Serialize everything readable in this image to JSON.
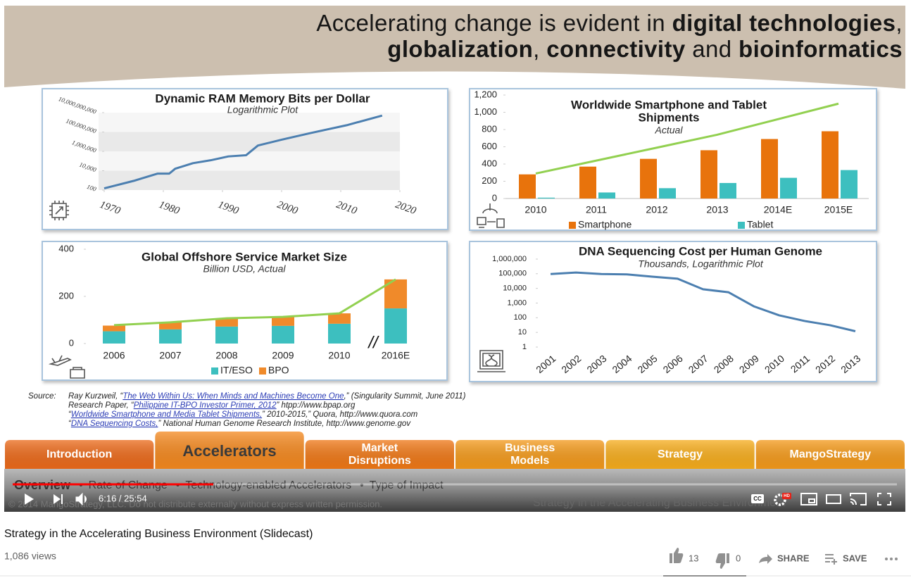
{
  "slide": {
    "title_lines": [
      [
        {
          "text": "Accelerating change is evident in ",
          "bold": false
        },
        {
          "text": "digital technologies",
          "bold": true
        },
        {
          "text": ",",
          "bold": false
        }
      ],
      [
        {
          "text": "globalization",
          "bold": true
        },
        {
          "text": ", ",
          "bold": false
        },
        {
          "text": "connectivity",
          "bold": true
        },
        {
          "text": " and ",
          "bold": false
        },
        {
          "text": "bioinformatics",
          "bold": true
        }
      ]
    ],
    "source": {
      "label": "Source:",
      "lines": [
        {
          "before": "Ray Kurzweil, “",
          "link": "The Web Within Us: When Minds and Machines Become One",
          "after": ",” (Singularity Summit, June 2011)"
        },
        {
          "before": "Research Paper, “",
          "link": "Philippine IT-BPO Investor Primer, 2012",
          "after": "” htpp://www.bpap.org"
        },
        {
          "before": "“",
          "link": "Worldwide Smartphone and Media Tablet Shipments,",
          "after": "” 2010-2015,” Quora, http://www.quora.com"
        },
        {
          "before": "“",
          "link": "DNA Sequencing Costs,",
          "after": "” National Human Genome Research Institute, http://www.genome.gov"
        }
      ]
    },
    "tabs": [
      [
        "Introduction"
      ],
      [
        "Accelerators"
      ],
      [
        "Market",
        "Disruptions"
      ],
      [
        "Business",
        "Models"
      ],
      [
        "Strategy"
      ],
      [
        "MangoStrategy"
      ]
    ],
    "active_tab": 1,
    "subnav": [
      "Overview",
      "Rate of Change",
      "Technology-enabled Accelerators",
      "Type of Impact"
    ],
    "subnav_separator": "•",
    "copyright": "© 2014 MangoStrategy, LLC. Do not distribute externally without express written permission.",
    "footer_title": "Strategy in the Accelerating Business Environment"
  },
  "chart_data": [
    {
      "type": "line",
      "title": "Dynamic RAM Memory Bits per Dollar",
      "subtitle": "Logarithmic Plot",
      "x": [
        1970,
        1975,
        1979,
        1981,
        1982,
        1985,
        1988,
        1991,
        1994,
        1996,
        2000,
        2005,
        2011,
        2017
      ],
      "values": [
        150,
        900,
        5000,
        5000,
        16000,
        60000,
        120000,
        300000,
        400000,
        4000000,
        16000000,
        80000000,
        500000000,
        5000000000
      ],
      "color": "#4c7fb0",
      "log_y": true,
      "grid": "bands",
      "xlim": [
        1970,
        2020
      ],
      "xticks": [
        1970,
        1980,
        1990,
        2000,
        2010,
        2020
      ],
      "ylim": [
        100,
        10000000000
      ],
      "yticks": [
        100,
        {
          "value": 10000,
          "label": "10,000"
        },
        {
          "value": 1000000,
          "label": "1,000,000"
        },
        {
          "value": 100000000,
          "label": "100,000,000"
        },
        {
          "value": 10000000000,
          "label": "10,000,000,000"
        }
      ]
    },
    {
      "type": "bar",
      "title": [
        "Worldwide Smartphone and Tablet",
        "Shipments"
      ],
      "subtitle": "Actual",
      "categories": [
        "2010",
        "2011",
        "2012",
        "2013",
        "2014E",
        "2015E"
      ],
      "series": [
        {
          "name": "Smartphone",
          "color": "#e8730c",
          "values": [
            280,
            370,
            460,
            560,
            690,
            780
          ]
        },
        {
          "name": "Tablet",
          "color": "#3dbfbf",
          "values": [
            10,
            70,
            120,
            180,
            240,
            330
          ]
        }
      ],
      "line": {
        "color": "#92d050",
        "values": [
          290,
          440,
          590,
          740,
          920,
          1100
        ]
      },
      "ylim": [
        0,
        1200
      ],
      "yticks": [
        0,
        200,
        400,
        600,
        800,
        {
          "value": 1000,
          "label": "1,000"
        },
        {
          "value": 1200,
          "label": "1,200"
        }
      ]
    },
    {
      "type": "stacked_bar",
      "title": "Global Offshore Service Market Size",
      "subtitle": "Billion USD, Actual",
      "categories": [
        "2006",
        "2007",
        "2008",
        "2009",
        "2010",
        "2016E"
      ],
      "series": [
        {
          "name": "IT/ESO",
          "color": "#3dbfbf",
          "values": [
            52,
            60,
            72,
            75,
            84,
            149
          ]
        },
        {
          "name": "BPO",
          "color": "#f08a2a",
          "values": [
            24,
            30,
            35,
            38,
            44,
            123
          ]
        }
      ],
      "line": {
        "color": "#92d050",
        "values": [
          78,
          90,
          107,
          113,
          128,
          272
        ]
      },
      "annotation": "//",
      "ylim": [
        0,
        400
      ],
      "yticks": [
        0,
        200,
        400
      ]
    },
    {
      "type": "line",
      "title": "DNA Sequencing Cost per Human Genome",
      "subtitle": "Thousands, Logarithmic Plot",
      "categories": [
        "2001",
        "2002",
        "2003",
        "2004",
        "2005",
        "2006",
        "2007",
        "2008",
        "2009",
        "2010",
        "2011",
        "2012",
        "2013"
      ],
      "values": [
        95000,
        120000,
        95000,
        90000,
        63000,
        46000,
        8700,
        5500,
        600,
        145,
        60,
        31,
        12
      ],
      "color": "#4c7fb0",
      "log_y": true,
      "ylim": [
        1,
        1000000
      ],
      "yticks": [
        1,
        10,
        100,
        {
          "value": 1000,
          "label": "1,000"
        },
        {
          "value": 10000,
          "label": "10,000"
        },
        {
          "value": 100000,
          "label": "100,000"
        },
        {
          "value": 1000000,
          "label": "1,000,000"
        }
      ]
    }
  ],
  "player": {
    "time": "6:16 / 25:54",
    "cc": "CC",
    "hd": "HD"
  },
  "video": {
    "title": "Strategy in the Accelerating Business Environment (Slidecast)",
    "views": "1,086 views",
    "likes": 13,
    "dislikes": 0,
    "share": "SHARE",
    "save": "SAVE"
  }
}
